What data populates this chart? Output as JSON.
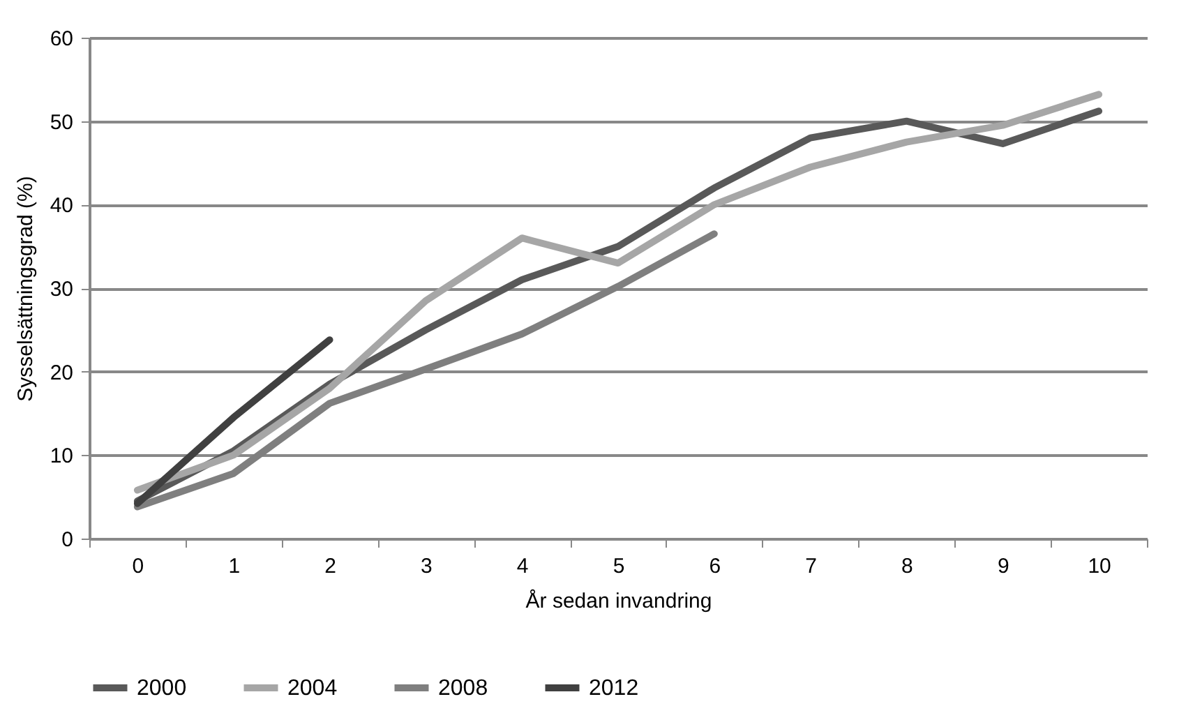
{
  "chart_data": {
    "type": "line",
    "xlabel": "År sedan invandring",
    "ylabel": "Sysselsättningsgrad  (%)",
    "categories": [
      "0",
      "1",
      "2",
      "3",
      "4",
      "5",
      "6",
      "7",
      "8",
      "9",
      "10"
    ],
    "series": [
      {
        "name": "2000",
        "color": "#595959",
        "values": [
          4.5,
          10.5,
          18.5,
          25,
          31,
          35,
          42,
          48,
          50,
          47.3,
          51.2
        ]
      },
      {
        "name": "2004",
        "color": "#a6a6a6",
        "values": [
          5.8,
          10,
          18,
          28.5,
          36,
          33,
          40,
          44.5,
          47.5,
          49.5,
          53.2
        ]
      },
      {
        "name": "2008",
        "color": "#7f7f7f",
        "values": [
          3.8,
          7.8,
          16.2,
          20.3,
          24.5,
          30.2,
          36.5,
          null,
          null,
          null,
          null
        ]
      },
      {
        "name": "2012",
        "color": "#404040",
        "values": [
          4.2,
          14.5,
          23.8,
          null,
          null,
          null,
          null,
          null,
          null,
          null,
          null
        ]
      }
    ],
    "ylim": [
      0,
      60
    ],
    "yticks": [
      0,
      10,
      20,
      30,
      40,
      50,
      60
    ],
    "grid": "y",
    "legend": "bottom",
    "marker": "none",
    "line_style": "solid"
  }
}
